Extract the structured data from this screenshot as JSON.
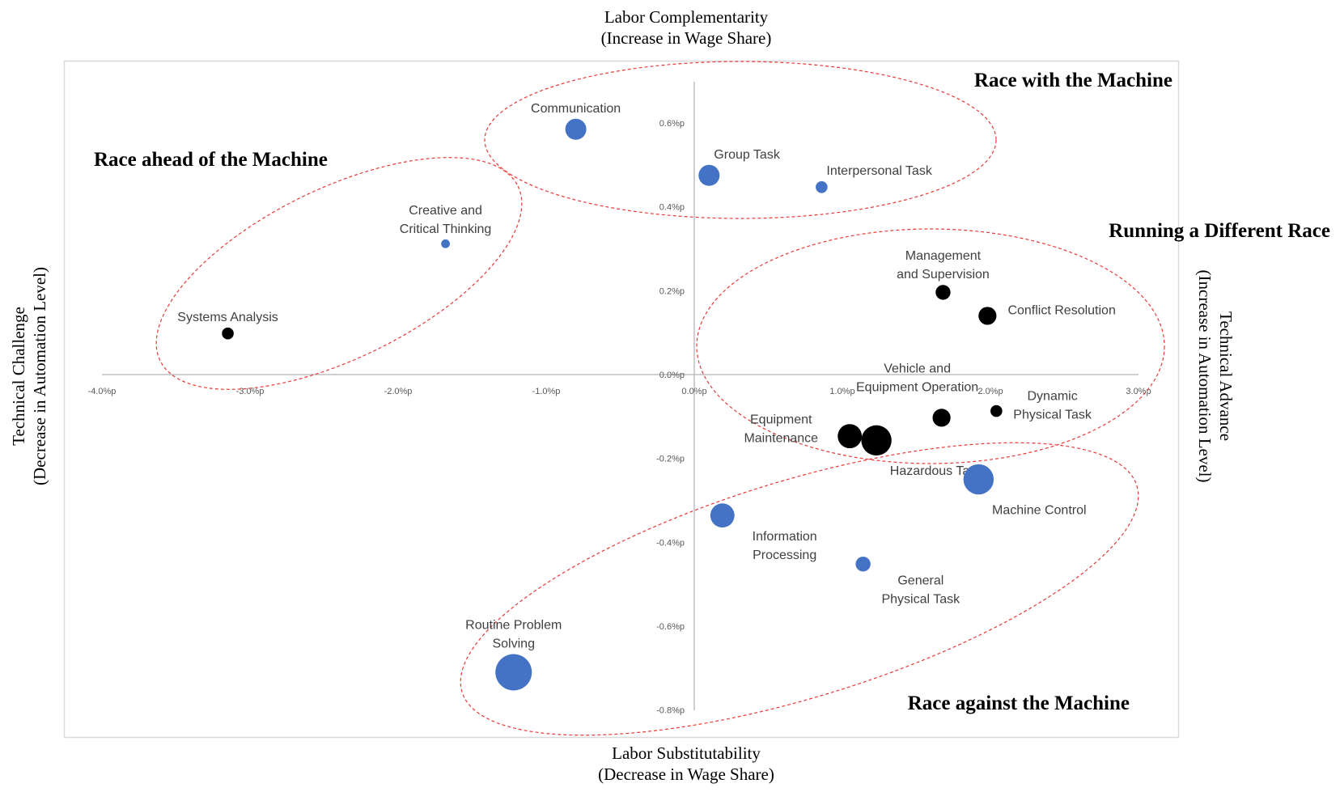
{
  "chart_data": {
    "type": "scatter",
    "bubble": true,
    "outer_labels": {
      "top": [
        "Labor Complementarity",
        "(Increase in Wage Share)"
      ],
      "bottom": [
        "Labor Substitutability",
        "(Decrease in Wage Share)"
      ],
      "left": [
        "Technical Challenge",
        "(Decrease in Automation Level)"
      ],
      "right": [
        "Technical Advance",
        "(Increase in Automation Level)"
      ]
    },
    "xlim": [
      -4.0,
      3.0
    ],
    "ylim": [
      -0.8,
      0.7
    ],
    "x_ticks": [
      {
        "value": -4.0,
        "label": "-4.0%p"
      },
      {
        "value": -3.0,
        "label": "-3.0%p"
      },
      {
        "value": -2.0,
        "label": "-2.0%p"
      },
      {
        "value": -1.0,
        "label": "-1.0%p"
      },
      {
        "value": 0.0,
        "label": "0.0%p"
      },
      {
        "value": 1.0,
        "label": "1.0%p"
      },
      {
        "value": 2.0,
        "label": "2.0%p"
      },
      {
        "value": 3.0,
        "label": "3.0%p"
      }
    ],
    "y_ticks": [
      {
        "value": 0.6,
        "label": "0.6%p"
      },
      {
        "value": 0.4,
        "label": "0.4%p"
      },
      {
        "value": 0.2,
        "label": "0.2%p"
      },
      {
        "value": 0.0,
        "label": "0.0%p"
      },
      {
        "value": -0.2,
        "label": "-0.2%p"
      },
      {
        "value": -0.4,
        "label": "-0.4%p"
      },
      {
        "value": -0.6,
        "label": "-0.6%p"
      },
      {
        "value": -0.8,
        "label": "-0.8%p"
      }
    ],
    "grid": false,
    "colors": {
      "blue": "#4472C4",
      "black": "#000000",
      "ellipse": "#E83A3A"
    },
    "points": [
      {
        "label": [
          "Communication"
        ],
        "x": -0.8,
        "y": 0.585,
        "size": 5,
        "color": "blue",
        "label_pos": "above"
      },
      {
        "label": [
          "Group Task"
        ],
        "x": 0.1,
        "y": 0.475,
        "size": 5,
        "color": "blue",
        "label_pos": "above-right"
      },
      {
        "label": [
          "Interpersonal Task"
        ],
        "x": 0.86,
        "y": 0.447,
        "size": 2,
        "color": "blue",
        "label_pos": "above-right"
      },
      {
        "label": [
          "Creative and",
          "Critical Thinking"
        ],
        "x": -1.68,
        "y": 0.312,
        "size": 1,
        "color": "blue",
        "label_pos": "above"
      },
      {
        "label": [
          "Systems Analysis"
        ],
        "x": -3.15,
        "y": 0.098,
        "size": 2,
        "color": "black",
        "label_pos": "above"
      },
      {
        "label": [
          "Management",
          "and Supervision"
        ],
        "x": 1.68,
        "y": 0.196,
        "size": 3,
        "color": "black",
        "label_pos": "above"
      },
      {
        "label": [
          "Conflict Resolution"
        ],
        "x": 1.98,
        "y": 0.14,
        "size": 4,
        "color": "black",
        "label_pos": "right"
      },
      {
        "label": [
          "Vehicle and",
          "Equipment Operation"
        ],
        "x": 1.67,
        "y": -0.103,
        "size": 4,
        "color": "black",
        "label_pos": "above-left"
      },
      {
        "label": [
          "Dynamic",
          "Physical Task"
        ],
        "x": 2.04,
        "y": -0.087,
        "size": 2,
        "color": "black",
        "label_pos": "right"
      },
      {
        "label": [
          "Equipment",
          "Maintenance"
        ],
        "x": 1.05,
        "y": -0.147,
        "size": 6,
        "color": "black",
        "label_pos": "left"
      },
      {
        "label": [
          "Hazardous Task"
        ],
        "x": 1.23,
        "y": -0.157,
        "size": 8,
        "color": "black",
        "label_pos": "below-right"
      },
      {
        "label": [
          "Machine Control"
        ],
        "x": 1.92,
        "y": -0.25,
        "size": 8,
        "color": "blue",
        "label_pos": "below-right"
      },
      {
        "label": [
          "Information",
          "Processing"
        ],
        "x": 0.19,
        "y": -0.336,
        "size": 6,
        "color": "blue",
        "label_pos": "below-right"
      },
      {
        "label": [
          "General",
          "Physical Task"
        ],
        "x": 1.14,
        "y": -0.452,
        "size": 3,
        "color": "blue",
        "label_pos": "below-right"
      },
      {
        "label": [
          "Routine Problem",
          "Solving"
        ],
        "x": -1.22,
        "y": -0.71,
        "size": 10,
        "color": "blue",
        "label_pos": "above"
      }
    ],
    "regions": [
      {
        "name": "Race with the Machine",
        "label_corner": "top-right"
      },
      {
        "name": "Race ahead of the Machine",
        "label_corner": "top-left"
      },
      {
        "name": "Running a Different Race",
        "label_corner": "right"
      },
      {
        "name": "Race against the Machine",
        "label_corner": "bottom-right"
      }
    ]
  }
}
